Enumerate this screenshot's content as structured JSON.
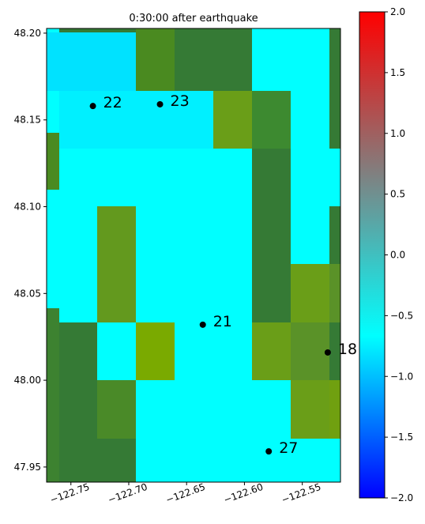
{
  "chart_data": {
    "type": "map",
    "title": "0:30:00 after earthquake",
    "xlim": [
      -122.771,
      -122.517
    ],
    "ylim": [
      47.9413,
      48.2027
    ],
    "xticks": [
      {
        "value": -122.75,
        "label": "−122.75"
      },
      {
        "value": -122.7,
        "label": "−122.70"
      },
      {
        "value": -122.65,
        "label": "−122.65"
      },
      {
        "value": -122.6,
        "label": "−122.60"
      },
      {
        "value": -122.55,
        "label": "−122.55"
      }
    ],
    "yticks": [
      {
        "value": 48.2,
        "label": "48.20"
      },
      48.15,
      {
        "value": 48.1,
        "label": "48.10"
      },
      48.05,
      {
        "value": 48.0,
        "label": "48.00"
      },
      47.95
    ],
    "gauges": {
      "labels": [
        "22",
        "23",
        "21",
        "18",
        "27"
      ],
      "x": [
        -122.731,
        -122.673,
        -122.636,
        -122.528,
        -122.579
      ],
      "y": [
        48.158,
        48.159,
        48.032,
        48.016,
        47.959
      ],
      "color": "#000000"
    },
    "clim": [
      -2,
      2
    ],
    "colorscale": [
      "#0000ff",
      "#00ffff",
      "#808080",
      "#ff0000"
    ],
    "cticks": [
      {
        "value": -2,
        "label": "−2.0"
      },
      {
        "value": -1.5,
        "label": "−1.5"
      },
      {
        "value": -1,
        "label": "−1.0"
      },
      {
        "value": -0.5,
        "label": "−0.5"
      },
      {
        "value": 0,
        "label": "0.0"
      },
      {
        "value": 0.5,
        "label": "0.5"
      },
      {
        "value": 1,
        "label": "1.0"
      },
      {
        "value": 1.5,
        "label": "1.5"
      },
      {
        "value": 2,
        "label": "2.0"
      }
    ]
  }
}
